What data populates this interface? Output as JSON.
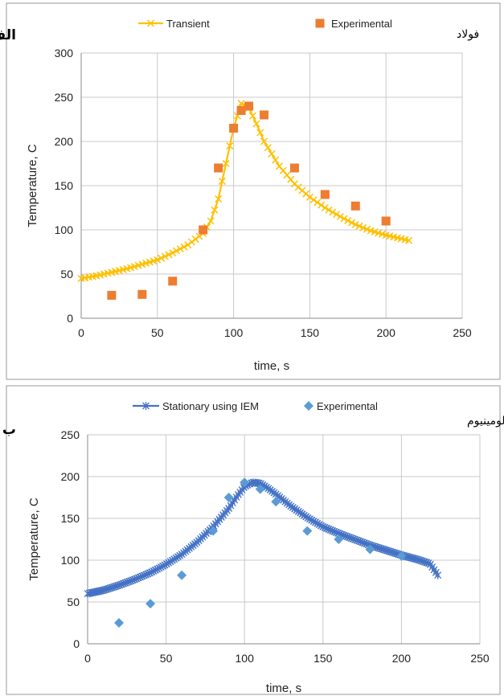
{
  "chart_data": [
    {
      "type": "scatter",
      "panel_tag": "الف",
      "material_label": "فولاد",
      "xlabel": "time, s",
      "ylabel": "Temperature, C",
      "xlim": [
        0,
        250
      ],
      "ylim": [
        0,
        300
      ],
      "xticks": [
        "0",
        "50",
        "100",
        "150",
        "200",
        "250"
      ],
      "yticks": [
        "0",
        "50",
        "100",
        "150",
        "200",
        "250",
        "300"
      ],
      "grid": true,
      "legend_position": "top",
      "series": [
        {
          "name": "Transient",
          "kind": "line",
          "marker": "x",
          "color": "#FFC000",
          "x": [
            0,
            10,
            20,
            30,
            40,
            50,
            60,
            70,
            80,
            85,
            90,
            95,
            100,
            105,
            110,
            115,
            120,
            130,
            140,
            150,
            160,
            170,
            180,
            190,
            200,
            210,
            215
          ],
          "y": [
            45,
            48,
            52,
            56,
            61,
            66,
            74,
            83,
            96,
            110,
            135,
            175,
            215,
            243,
            238,
            220,
            200,
            172,
            152,
            137,
            125,
            115,
            106,
            99,
            94,
            90,
            88
          ]
        },
        {
          "name": "Experimental",
          "kind": "scatter",
          "marker": "square",
          "color": "#ED7D31",
          "x": [
            20,
            40,
            60,
            80,
            90,
            100,
            105,
            110,
            120,
            140,
            160,
            180,
            200
          ],
          "y": [
            26,
            27,
            42,
            100,
            170,
            215,
            235,
            240,
            230,
            170,
            140,
            127,
            110
          ]
        }
      ]
    },
    {
      "type": "scatter",
      "panel_tag": "ب",
      "material_label": "آلومینیوم",
      "xlabel": "time, s",
      "ylabel": "Temperature, C",
      "xlim": [
        0,
        250
      ],
      "ylim": [
        0,
        250
      ],
      "xticks": [
        "0",
        "50",
        "100",
        "150",
        "200",
        "250"
      ],
      "yticks": [
        "0",
        "50",
        "100",
        "150",
        "200",
        "250"
      ],
      "grid": true,
      "legend_position": "top",
      "series": [
        {
          "name": "Stationary using IEM",
          "kind": "line",
          "marker": "asterisk",
          "color": "#4472C4",
          "x": [
            0,
            10,
            20,
            30,
            40,
            50,
            60,
            70,
            80,
            90,
            95,
            100,
            105,
            110,
            115,
            120,
            130,
            140,
            150,
            160,
            170,
            180,
            190,
            200,
            210,
            218,
            224
          ],
          "y": [
            60,
            64,
            70,
            77,
            85,
            95,
            107,
            122,
            140,
            162,
            176,
            188,
            193,
            192,
            186,
            179,
            164,
            151,
            140,
            132,
            125,
            118,
            112,
            106,
            101,
            96,
            80
          ]
        },
        {
          "name": "Experimental",
          "kind": "scatter",
          "marker": "diamond",
          "color": "#5B9BD5",
          "x": [
            20,
            40,
            60,
            80,
            90,
            100,
            110,
            120,
            140,
            160,
            180,
            200
          ],
          "y": [
            25,
            48,
            82,
            135,
            175,
            193,
            185,
            170,
            135,
            125,
            113,
            105
          ]
        }
      ]
    }
  ]
}
